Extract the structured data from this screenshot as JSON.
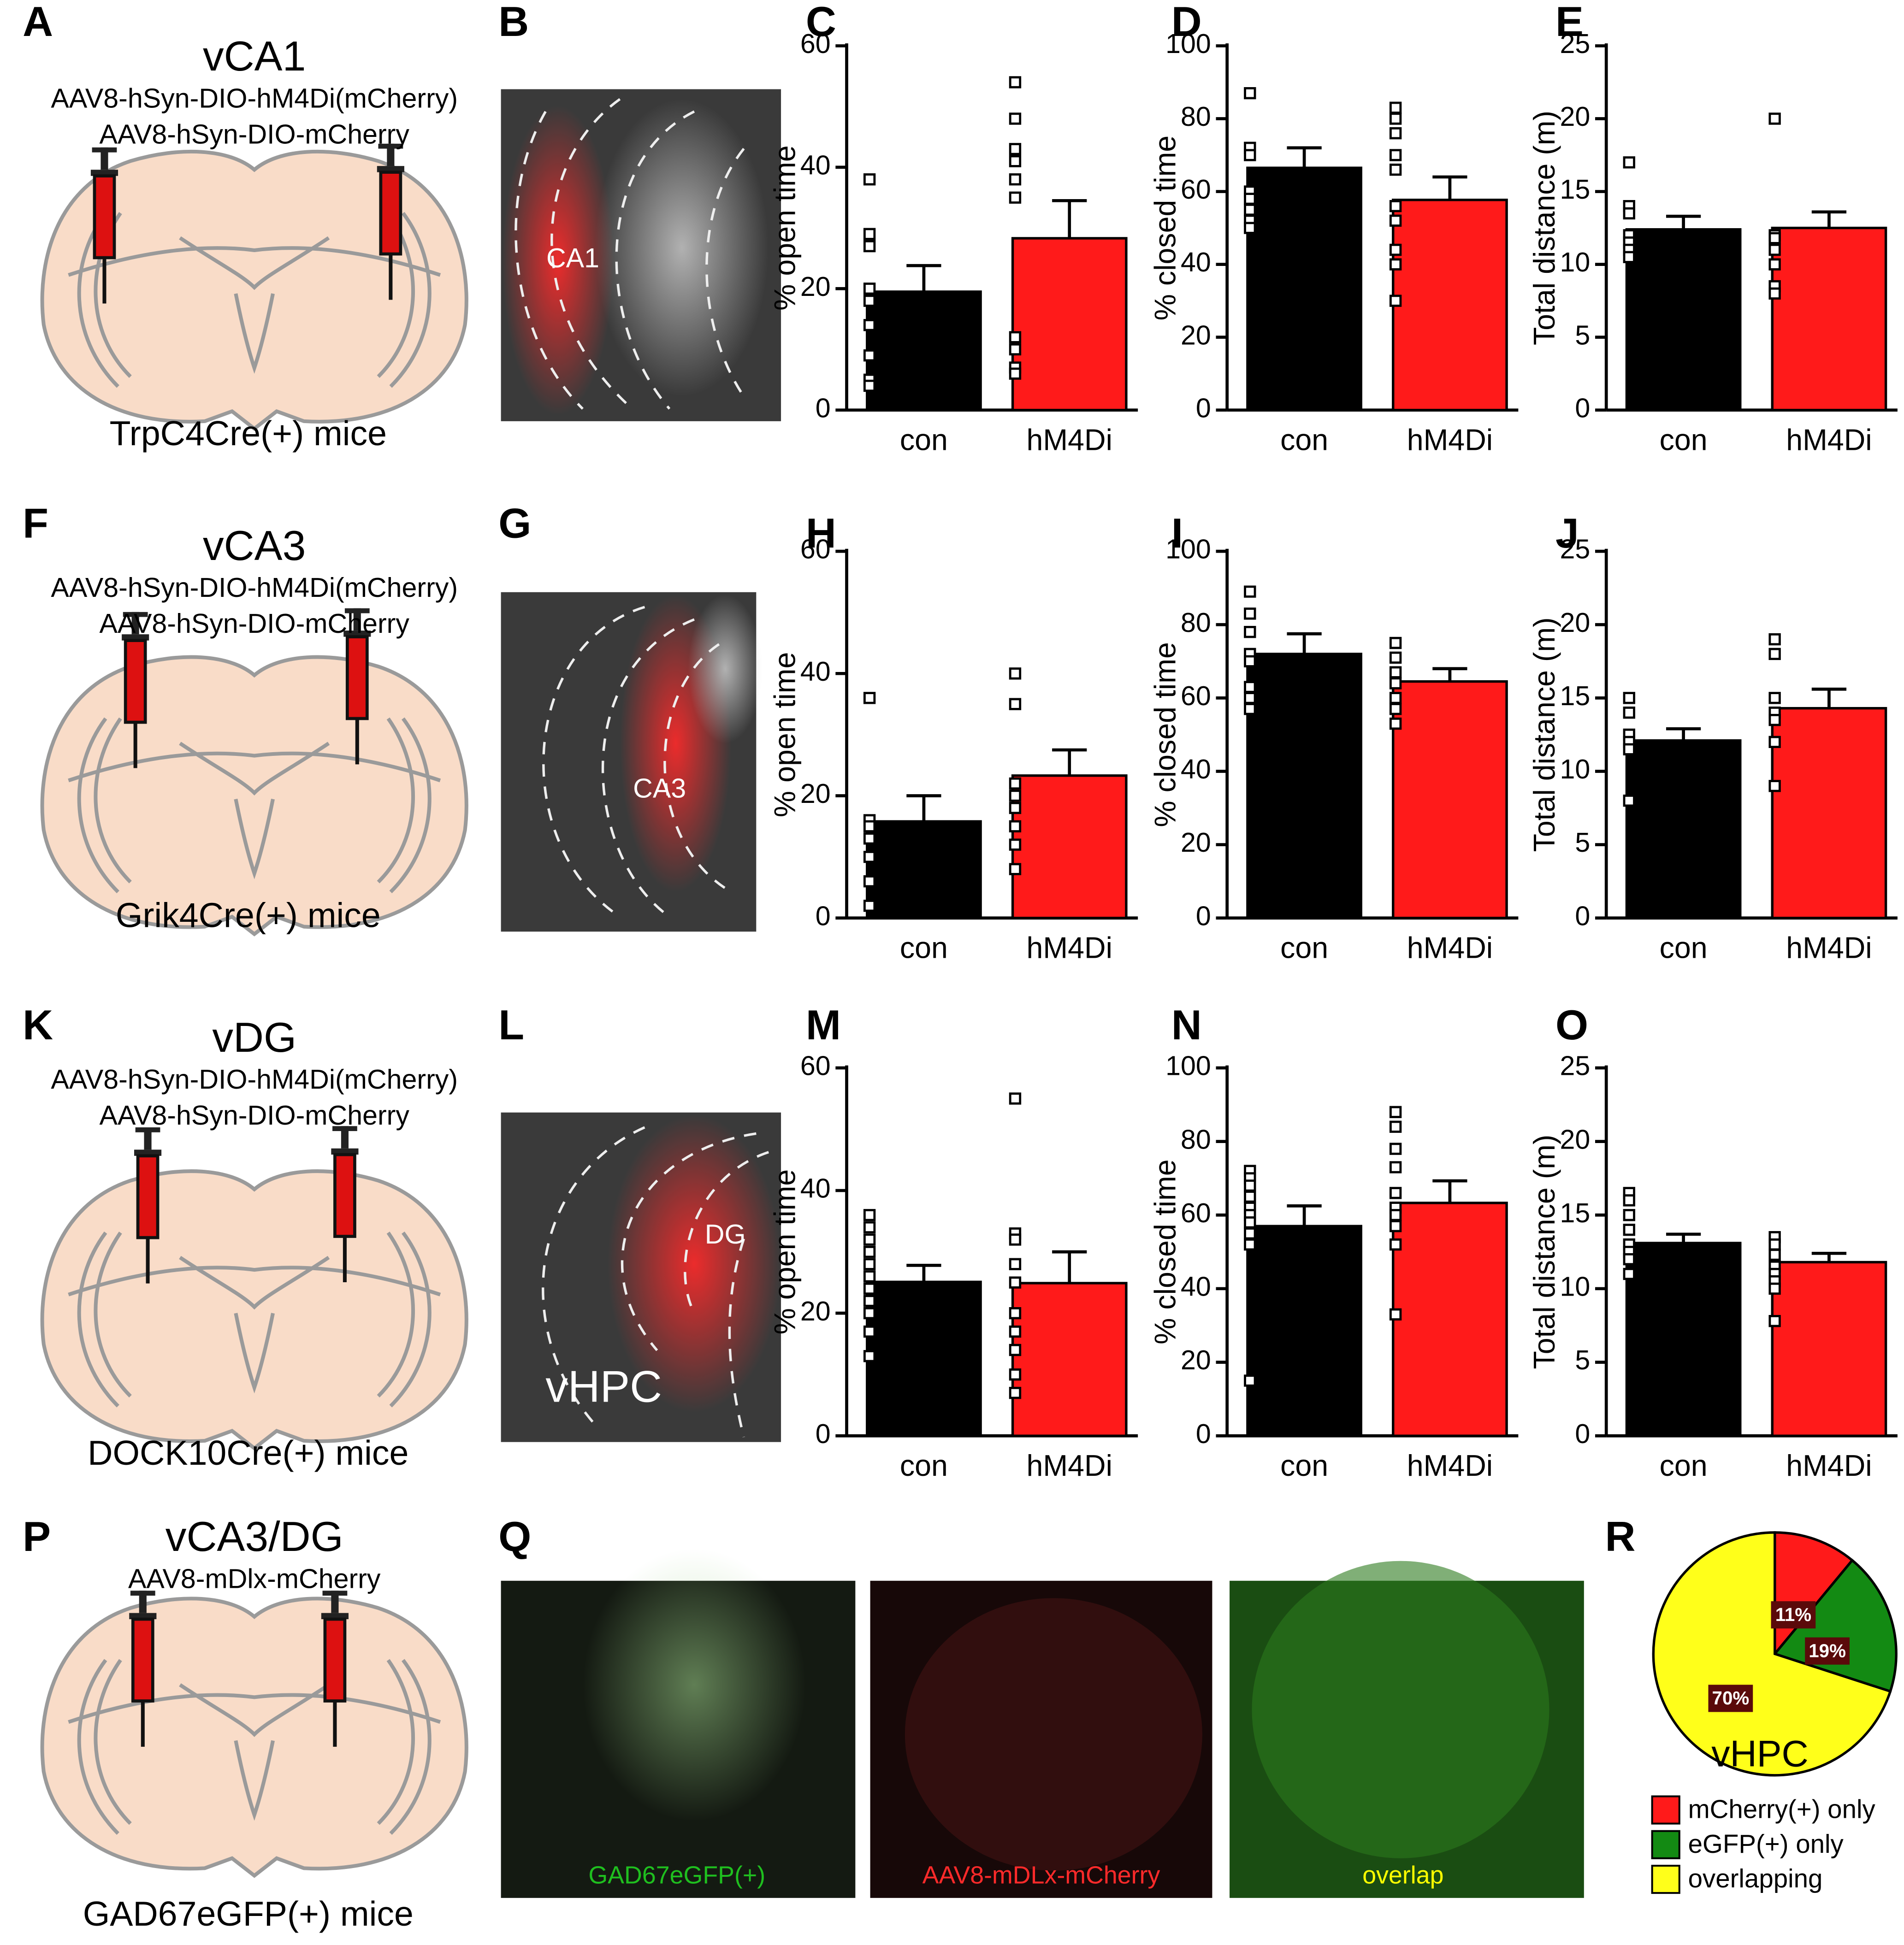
{
  "figure": {
    "panel_letters": [
      "A",
      "B",
      "C",
      "D",
      "E",
      "F",
      "G",
      "H",
      "I",
      "J",
      "K",
      "L",
      "M",
      "N",
      "O",
      "P",
      "Q",
      "R"
    ],
    "injections": [
      {
        "region": "vCA1",
        "viruses": [
          "AAV8-hSyn-DIO-hM4Di(mCherry)",
          "AAV8-hSyn-DIO-mCherry"
        ],
        "mice": "TrpC4Cre(+) mice"
      },
      {
        "region": "vCA3",
        "viruses": [
          "AAV8-hSyn-DIO-hM4Di(mCherry)",
          "AAV8-hSyn-DIO-mCherry"
        ],
        "mice": "Grik4Cre(+) mice"
      },
      {
        "region": "vDG",
        "viruses": [
          "AAV8-hSyn-DIO-hM4Di(mCherry)",
          "AAV8-hSyn-DIO-mCherry"
        ],
        "mice": "DOCK10Cre(+) mice"
      },
      {
        "region": "vCA3/DG",
        "viruses": [
          "AAV8-mDlx-mCherry"
        ],
        "mice": "GAD67eGFP(+) mice"
      }
    ],
    "image_labels": [
      "CA1",
      "CA3",
      "DG",
      "vHPC",
      "GAD67eGFP(+)",
      "AAV8-mDLx-mCherry",
      "overlap"
    ]
  },
  "chart_data": [
    {
      "type": "bar",
      "ylabel": "% open time",
      "categories": [
        "con",
        "hM4Di"
      ],
      "colors": [
        "#000000",
        "#ff1a1a"
      ],
      "values": [
        19.5,
        28.3
      ],
      "errors": [
        4.3,
        6.2
      ],
      "points": [
        [
          38,
          29,
          27,
          20,
          18,
          14,
          9,
          5,
          4
        ],
        [
          54,
          48,
          43,
          41,
          38,
          35,
          12,
          10,
          7,
          6
        ]
      ],
      "ylim": [
        0,
        60
      ],
      "yticks": [
        0,
        20,
        40,
        60
      ]
    },
    {
      "type": "bar",
      "ylabel": "% closed time",
      "categories": [
        "con",
        "hM4Di"
      ],
      "colors": [
        "#000000",
        "#ff1a1a"
      ],
      "values": [
        66.5,
        57.7
      ],
      "errors": [
        5.5,
        6.3
      ],
      "points": [
        [
          87,
          72,
          70,
          60,
          58,
          55,
          52,
          50
        ],
        [
          83,
          80,
          76,
          70,
          66,
          56,
          52,
          44,
          40,
          30
        ]
      ],
      "ylim": [
        0,
        100
      ],
      "yticks": [
        0,
        20,
        40,
        60,
        80,
        100
      ]
    },
    {
      "type": "bar",
      "ylabel": "Total distance (m)",
      "categories": [
        "con",
        "hM4Di"
      ],
      "colors": [
        "#000000",
        "#ff1a1a"
      ],
      "values": [
        12.4,
        12.5
      ],
      "errors": [
        0.9,
        1.1
      ],
      "points": [
        [
          17,
          14,
          13.5,
          12,
          11.5,
          11,
          10.5
        ],
        [
          20,
          12,
          11.8,
          11,
          10,
          8.5,
          8
        ]
      ],
      "ylim": [
        0,
        25
      ],
      "yticks": [
        0,
        5,
        10,
        15,
        20,
        25
      ]
    },
    {
      "type": "bar",
      "ylabel": "% open time",
      "categories": [
        "con",
        "hM4Di"
      ],
      "colors": [
        "#000000",
        "#ff1a1a"
      ],
      "values": [
        15.8,
        23.3
      ],
      "errors": [
        4.2,
        4.2
      ],
      "points": [
        [
          36,
          16,
          15,
          13,
          10,
          6,
          2
        ],
        [
          40,
          35,
          22,
          20,
          18,
          15,
          12,
          8
        ]
      ],
      "ylim": [
        0,
        60
      ],
      "yticks": [
        0,
        20,
        40,
        60
      ]
    },
    {
      "type": "bar",
      "ylabel": "% closed time",
      "categories": [
        "con",
        "hM4Di"
      ],
      "colors": [
        "#000000",
        "#ff1a1a"
      ],
      "values": [
        72,
        64.5
      ],
      "errors": [
        5.5,
        3.5
      ],
      "points": [
        [
          89,
          83,
          78,
          72,
          70,
          63,
          60,
          57
        ],
        [
          75,
          71,
          67,
          64,
          60,
          57,
          53
        ]
      ],
      "ylim": [
        0,
        100
      ],
      "yticks": [
        0,
        20,
        40,
        60,
        80,
        100
      ]
    },
    {
      "type": "bar",
      "ylabel": "Total distance (m)",
      "categories": [
        "con",
        "hM4Di"
      ],
      "colors": [
        "#000000",
        "#ff1a1a"
      ],
      "values": [
        12.1,
        14.3
      ],
      "errors": [
        0.8,
        1.3
      ],
      "points": [
        [
          15,
          14,
          12.5,
          12,
          11.5,
          8
        ],
        [
          19,
          18,
          15,
          14,
          13.5,
          12,
          9
        ]
      ],
      "ylim": [
        0,
        25
      ],
      "yticks": [
        0,
        5,
        10,
        15,
        20,
        25
      ]
    },
    {
      "type": "bar",
      "ylabel": "% open time",
      "categories": [
        "con",
        "hM4Di"
      ],
      "colors": [
        "#000000",
        "#ff1a1a"
      ],
      "values": [
        25.1,
        24.9
      ],
      "errors": [
        2.7,
        5.1
      ],
      "points": [
        [
          36,
          34,
          32,
          30,
          28,
          26,
          24,
          22,
          20,
          17,
          13
        ],
        [
          55,
          33,
          32,
          28,
          25,
          20,
          17,
          14,
          10,
          7
        ]
      ],
      "ylim": [
        0,
        60
      ],
      "yticks": [
        0,
        20,
        40,
        60
      ]
    },
    {
      "type": "bar",
      "ylabel": "% closed time",
      "categories": [
        "con",
        "hM4Di"
      ],
      "colors": [
        "#000000",
        "#ff1a1a"
      ],
      "values": [
        57,
        63.3
      ],
      "errors": [
        5.5,
        6
      ],
      "points": [
        [
          72,
          70,
          68,
          65,
          62,
          60,
          58,
          55,
          52,
          15
        ],
        [
          88,
          84,
          78,
          73,
          66,
          62,
          60,
          57,
          52,
          33
        ]
      ],
      "ylim": [
        0,
        100
      ],
      "yticks": [
        0,
        20,
        40,
        60,
        80,
        100
      ]
    },
    {
      "type": "bar",
      "ylabel": "Total distance (m)",
      "categories": [
        "con",
        "hM4Di"
      ],
      "colors": [
        "#000000",
        "#ff1a1a"
      ],
      "values": [
        13.1,
        11.8
      ],
      "errors": [
        0.6,
        0.6
      ],
      "points": [
        [
          16.5,
          16,
          15,
          14,
          13,
          12.5,
          12,
          11
        ],
        [
          13.5,
          13,
          12.3,
          11.5,
          11,
          10.5,
          10,
          7.8
        ]
      ],
      "ylim": [
        0,
        25
      ],
      "yticks": [
        0,
        5,
        10,
        15,
        20,
        25
      ]
    },
    {
      "type": "pie",
      "categories": [
        "mCherry(+) only",
        "eGFP(+) only",
        "overlapping"
      ],
      "values": [
        11,
        19,
        70
      ],
      "value_labels": [
        "11%",
        "19%",
        "70%"
      ],
      "colors": [
        "#ff1a1a",
        "#138a13",
        "#ffff1a"
      ],
      "annotation": "vHPC"
    }
  ]
}
